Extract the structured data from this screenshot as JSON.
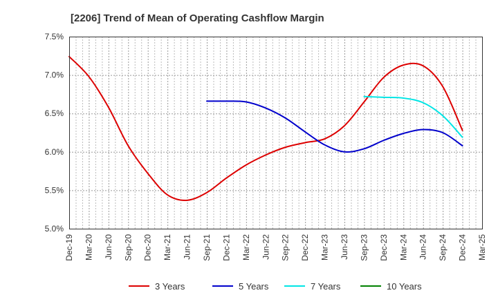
{
  "chart_data": {
    "type": "line",
    "title": "[2206]  Trend of Mean of Operating Cashflow Margin",
    "xlabel": "",
    "ylabel": "",
    "x_ticks": [
      "Dec-19",
      "Mar-20",
      "Jun-20",
      "Sep-20",
      "Dec-20",
      "Mar-21",
      "Jun-21",
      "Sep-21",
      "Dec-21",
      "Mar-22",
      "Jun-22",
      "Sep-22",
      "Dec-22",
      "Mar-23",
      "Jun-23",
      "Sep-23",
      "Dec-23",
      "Mar-24",
      "Jun-24",
      "Sep-24",
      "Dec-24",
      "Mar-25"
    ],
    "y_ticks": [
      "5.0%",
      "5.5%",
      "6.0%",
      "6.5%",
      "7.0%",
      "7.5%"
    ],
    "ylim": [
      5.0,
      7.5
    ],
    "grid": true,
    "legend_position": "bottom",
    "series": [
      {
        "name": "3 Years",
        "color": "#dd0000",
        "x": [
          "Dec-19",
          "Mar-20",
          "Jun-20",
          "Sep-20",
          "Dec-20",
          "Mar-21",
          "Jun-21",
          "Sep-21",
          "Dec-21",
          "Mar-22",
          "Jun-22",
          "Sep-22",
          "Dec-22",
          "Mar-23",
          "Jun-23",
          "Sep-23",
          "Dec-23",
          "Mar-24",
          "Jun-24",
          "Sep-24",
          "Dec-24"
        ],
        "values": [
          7.24,
          6.98,
          6.58,
          6.08,
          5.72,
          5.44,
          5.37,
          5.47,
          5.66,
          5.83,
          5.96,
          6.06,
          6.12,
          6.17,
          6.34,
          6.65,
          6.97,
          7.13,
          7.12,
          6.85,
          6.28
        ]
      },
      {
        "name": "5 Years",
        "color": "#0000cc",
        "x": [
          "Sep-21",
          "Dec-21",
          "Mar-22",
          "Jun-22",
          "Sep-22",
          "Dec-22",
          "Mar-23",
          "Jun-23",
          "Sep-23",
          "Dec-23",
          "Mar-24",
          "Jun-24",
          "Sep-24",
          "Dec-24"
        ],
        "values": [
          6.66,
          6.66,
          6.65,
          6.57,
          6.44,
          6.26,
          6.09,
          6.0,
          6.04,
          6.15,
          6.24,
          6.29,
          6.25,
          6.08
        ]
      },
      {
        "name": "7 Years",
        "color": "#00e5e5",
        "x": [
          "Sep-23",
          "Dec-23",
          "Mar-24",
          "Jun-24",
          "Sep-24",
          "Dec-24"
        ],
        "values": [
          6.72,
          6.71,
          6.7,
          6.64,
          6.47,
          6.19
        ]
      },
      {
        "name": "10 Years",
        "color": "#008000",
        "x": [],
        "values": []
      }
    ]
  }
}
